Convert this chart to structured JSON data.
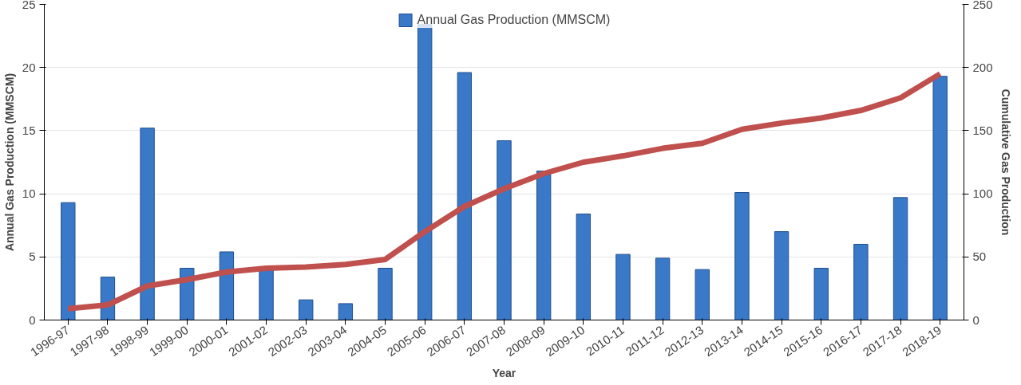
{
  "chart_data": {
    "type": "bar",
    "xlabel": "Year",
    "ylabel": "Annual Gas Production (MMSCM)",
    "y2label": "Cumulative Gas Production",
    "categories": [
      "1996-97",
      "1997-98",
      "1998-99",
      "1999-00",
      "2000-01",
      "2001-02",
      "2002-03",
      "2003-04",
      "2004-05",
      "2005-06",
      "2006-07",
      "2007-08",
      "2008-09",
      "2009-10",
      "2010-11",
      "2011-12",
      "2012-13",
      "2013-14",
      "2014-15",
      "2015-16",
      "2016-17",
      "2017-18",
      "2018-19"
    ],
    "series": [
      {
        "name": "Annual Gas Production (MMSCM)",
        "color": "#3a78c8",
        "values": [
          9.3,
          3.4,
          15.2,
          4.1,
          5.4,
          4.0,
          1.6,
          1.3,
          4.1,
          23.4,
          19.6,
          14.2,
          11.8,
          8.4,
          5.2,
          4.9,
          4.0,
          10.1,
          7.0,
          4.1,
          6.0,
          9.7,
          19.3
        ]
      },
      {
        "type": "line",
        "axis": "y2",
        "color": "#c0504d",
        "values": [
          9,
          12,
          27,
          32,
          38,
          41,
          42,
          44,
          48,
          70,
          90,
          104,
          116,
          125,
          130,
          136,
          140,
          151,
          156,
          160,
          166,
          176,
          195
        ]
      }
    ],
    "ylim": [
      0,
      25
    ],
    "yticks": [
      0,
      5,
      10,
      15,
      20,
      25
    ],
    "y2lim": [
      0,
      250
    ],
    "y2ticks": [
      0,
      50,
      100,
      150,
      200,
      250
    ],
    "grid": "y",
    "legend": "top",
    "marker": "none",
    "line_style": "solid"
  }
}
